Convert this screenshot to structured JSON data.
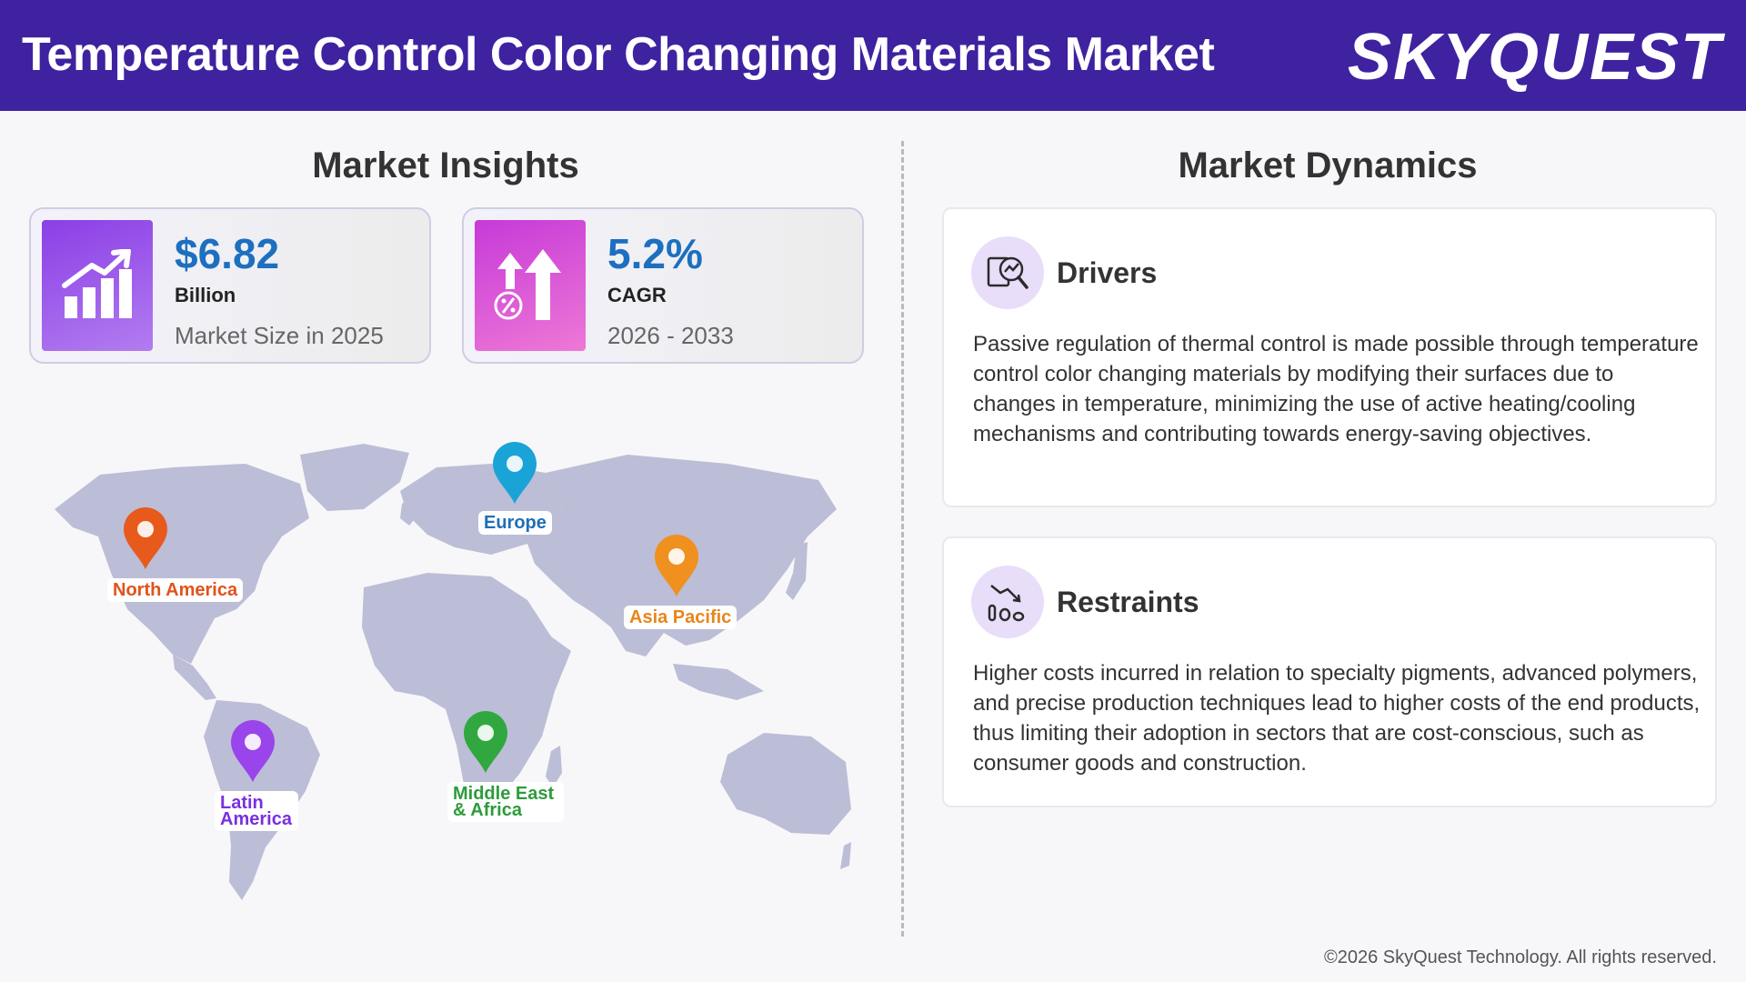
{
  "header": {
    "title": "Temperature Control Color Changing Materials Market",
    "brand": "SKYQUEST"
  },
  "insights": {
    "title": "Market Insights",
    "cards": [
      {
        "value": "$6.82",
        "unit": "Billion",
        "desc": "Market Size in 2025",
        "icon": "bar-chart-up-icon"
      },
      {
        "value": "5.2%",
        "unit": "CAGR",
        "desc": "2026 - 2033",
        "icon": "percent-up-arrows-icon"
      }
    ],
    "regions": [
      {
        "name": "North America",
        "color": "#e0531b"
      },
      {
        "name": "Europe",
        "color": "#1f6fb5"
      },
      {
        "name": "Asia Pacific",
        "color": "#e8861c"
      },
      {
        "name": "Latin America",
        "color": "#7a2fe0"
      },
      {
        "name": "Middle East & Africa",
        "color": "#2c9c3a"
      }
    ]
  },
  "dynamics": {
    "title": "Market Dynamics",
    "drivers": {
      "heading": "Drivers",
      "text": "Passive regulation of thermal control is made possible through temperature control color changing materials by modifying their surfaces due to changes in temperature, minimizing the use of active heating/cooling mechanisms and contributing towards energy-saving objectives.",
      "icon": "magnifier-chart-icon"
    },
    "restraints": {
      "heading": "Restraints",
      "text": "Higher costs incurred in relation to specialty pigments, advanced polymers, and precise production techniques lead to higher costs of the end products, thus limiting their adoption in sectors that are cost-conscious, such as consumer goods and construction.",
      "icon": "decline-chart-icon"
    }
  },
  "footer": "©2026 SkyQuest Technology. All rights reserved."
}
